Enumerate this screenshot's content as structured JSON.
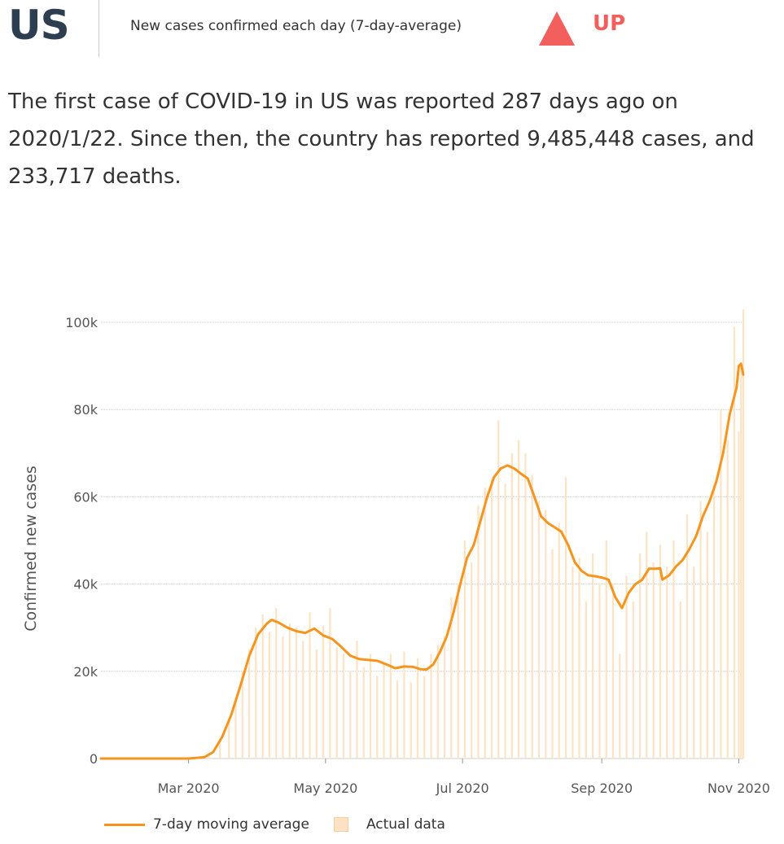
{
  "header": {
    "country": "US",
    "subtitle": "New cases confirmed each day (7-day-average)",
    "trend": "UP",
    "trend_color": "#f25f5c"
  },
  "summary": "The first case of COVID-19 in US was reported 287 days ago on 2020/1/22. Since then, the country has reported 9,485,448 cases, and 233,717 deaths.",
  "legend": {
    "line_label": "7-day moving average",
    "bar_label": "Actual data"
  },
  "colors": {
    "line": "#f7941d",
    "bars": "#fde3c3",
    "grid": "#cccccc",
    "text": "#333333"
  },
  "chart_data": {
    "type": "line",
    "ylabel": "Confirmed new cases",
    "ylim": [
      0,
      100000
    ],
    "y_ticks": [
      {
        "value": 0,
        "label": "0"
      },
      {
        "value": 20000,
        "label": "20k"
      },
      {
        "value": 40000,
        "label": "40k"
      },
      {
        "value": 60000,
        "label": "60k"
      },
      {
        "value": 80000,
        "label": "80k"
      },
      {
        "value": 100000,
        "label": "100k"
      }
    ],
    "xlim": [
      "2020-01-22",
      "2020-11-03"
    ],
    "x_ticks": [
      {
        "date": "2020-03-01",
        "label": "Mar 2020"
      },
      {
        "date": "2020-05-01",
        "label": "May 2020"
      },
      {
        "date": "2020-07-01",
        "label": "Jul 2020"
      },
      {
        "date": "2020-09-01",
        "label": "Sep 2020"
      },
      {
        "date": "2020-11-01",
        "label": "Nov 2020"
      }
    ],
    "grid": true,
    "legend_position": "bottom-left",
    "series": [
      {
        "name": "7-day moving average",
        "kind": "line",
        "points": [
          [
            "2020-01-22",
            0
          ],
          [
            "2020-03-01",
            0
          ],
          [
            "2020-03-08",
            300
          ],
          [
            "2020-03-12",
            1500
          ],
          [
            "2020-03-16",
            5000
          ],
          [
            "2020-03-20",
            10000
          ],
          [
            "2020-03-24",
            16500
          ],
          [
            "2020-03-28",
            23500
          ],
          [
            "2020-04-01",
            28500
          ],
          [
            "2020-04-05",
            31000
          ],
          [
            "2020-04-07",
            31800
          ],
          [
            "2020-04-10",
            31200
          ],
          [
            "2020-04-14",
            30000
          ],
          [
            "2020-04-18",
            29200
          ],
          [
            "2020-04-22",
            28800
          ],
          [
            "2020-04-26",
            29800
          ],
          [
            "2020-04-30",
            28200
          ],
          [
            "2020-05-04",
            27400
          ],
          [
            "2020-05-08",
            25600
          ],
          [
            "2020-05-12",
            23600
          ],
          [
            "2020-05-16",
            22800
          ],
          [
            "2020-05-20",
            22600
          ],
          [
            "2020-05-24",
            22400
          ],
          [
            "2020-05-28",
            21600
          ],
          [
            "2020-06-01",
            20700
          ],
          [
            "2020-06-05",
            21100
          ],
          [
            "2020-06-09",
            21000
          ],
          [
            "2020-06-12",
            20500
          ],
          [
            "2020-06-15",
            20400
          ],
          [
            "2020-06-18",
            21600
          ],
          [
            "2020-06-21",
            24500
          ],
          [
            "2020-06-24",
            28000
          ],
          [
            "2020-06-27",
            33500
          ],
          [
            "2020-06-30",
            40000
          ],
          [
            "2020-07-03",
            46000
          ],
          [
            "2020-07-06",
            49000
          ],
          [
            "2020-07-09",
            54500
          ],
          [
            "2020-07-12",
            60000
          ],
          [
            "2020-07-15",
            64500
          ],
          [
            "2020-07-18",
            66500
          ],
          [
            "2020-07-21",
            67200
          ],
          [
            "2020-07-24",
            66500
          ],
          [
            "2020-07-27",
            65300
          ],
          [
            "2020-07-30",
            64200
          ],
          [
            "2020-08-02",
            60000
          ],
          [
            "2020-08-05",
            55500
          ],
          [
            "2020-08-08",
            54000
          ],
          [
            "2020-08-11",
            53000
          ],
          [
            "2020-08-14",
            52000
          ],
          [
            "2020-08-17",
            49000
          ],
          [
            "2020-08-20",
            45000
          ],
          [
            "2020-08-23",
            43000
          ],
          [
            "2020-08-26",
            42000
          ],
          [
            "2020-08-29",
            41800
          ],
          [
            "2020-09-01",
            41500
          ],
          [
            "2020-09-04",
            41000
          ],
          [
            "2020-09-07",
            37000
          ],
          [
            "2020-09-10",
            34500
          ],
          [
            "2020-09-13",
            38000
          ],
          [
            "2020-09-16",
            40000
          ],
          [
            "2020-09-19",
            41000
          ],
          [
            "2020-09-22",
            43500
          ],
          [
            "2020-09-25",
            43500
          ],
          [
            "2020-09-27",
            43600
          ],
          [
            "2020-09-28",
            41000
          ],
          [
            "2020-10-01",
            42000
          ],
          [
            "2020-10-04",
            44000
          ],
          [
            "2020-10-07",
            45500
          ],
          [
            "2020-10-10",
            48000
          ],
          [
            "2020-10-13",
            51000
          ],
          [
            "2020-10-16",
            55500
          ],
          [
            "2020-10-19",
            59000
          ],
          [
            "2020-10-22",
            63500
          ],
          [
            "2020-10-25",
            70000
          ],
          [
            "2020-10-28",
            79000
          ],
          [
            "2020-10-31",
            85000
          ],
          [
            "2020-11-01",
            90000
          ],
          [
            "2020-11-02",
            90500
          ],
          [
            "2020-11-03",
            88000
          ]
        ]
      },
      {
        "name": "Actual data",
        "kind": "bar",
        "points": [
          [
            "2020-03-10",
            1000
          ],
          [
            "2020-03-15",
            3500
          ],
          [
            "2020-03-19",
            9000
          ],
          [
            "2020-03-22",
            14000
          ],
          [
            "2020-03-25",
            20000
          ],
          [
            "2020-03-28",
            25000
          ],
          [
            "2020-03-31",
            30000
          ],
          [
            "2020-04-03",
            33000
          ],
          [
            "2020-04-06",
            29000
          ],
          [
            "2020-04-09",
            34500
          ],
          [
            "2020-04-12",
            28000
          ],
          [
            "2020-04-15",
            31000
          ],
          [
            "2020-04-18",
            30000
          ],
          [
            "2020-04-21",
            27000
          ],
          [
            "2020-04-24",
            33500
          ],
          [
            "2020-04-27",
            25000
          ],
          [
            "2020-04-30",
            30500
          ],
          [
            "2020-05-03",
            34500
          ],
          [
            "2020-05-06",
            25500
          ],
          [
            "2020-05-09",
            24000
          ],
          [
            "2020-05-12",
            20000
          ],
          [
            "2020-05-15",
            27000
          ],
          [
            "2020-05-18",
            21000
          ],
          [
            "2020-05-21",
            24000
          ],
          [
            "2020-05-24",
            19000
          ],
          [
            "2020-05-27",
            22000
          ],
          [
            "2020-05-30",
            24000
          ],
          [
            "2020-06-02",
            18000
          ],
          [
            "2020-06-05",
            24500
          ],
          [
            "2020-06-08",
            17500
          ],
          [
            "2020-06-11",
            23000
          ],
          [
            "2020-06-14",
            19000
          ],
          [
            "2020-06-17",
            24000
          ],
          [
            "2020-06-20",
            26000
          ],
          [
            "2020-06-23",
            28000
          ],
          [
            "2020-06-26",
            37000
          ],
          [
            "2020-06-29",
            40000
          ],
          [
            "2020-07-02",
            50000
          ],
          [
            "2020-07-05",
            45000
          ],
          [
            "2020-07-08",
            58000
          ],
          [
            "2020-07-11",
            62000
          ],
          [
            "2020-07-14",
            64000
          ],
          [
            "2020-07-17",
            77500
          ],
          [
            "2020-07-20",
            63000
          ],
          [
            "2020-07-23",
            70000
          ],
          [
            "2020-07-26",
            73000
          ],
          [
            "2020-07-29",
            70000
          ],
          [
            "2020-08-01",
            65000
          ],
          [
            "2020-08-04",
            59000
          ],
          [
            "2020-08-07",
            57000
          ],
          [
            "2020-08-10",
            48000
          ],
          [
            "2020-08-13",
            54000
          ],
          [
            "2020-08-16",
            64500
          ],
          [
            "2020-08-19",
            44000
          ],
          [
            "2020-08-22",
            46000
          ],
          [
            "2020-08-25",
            36000
          ],
          [
            "2020-08-28",
            47000
          ],
          [
            "2020-08-31",
            40000
          ],
          [
            "2020-09-03",
            50000
          ],
          [
            "2020-09-06",
            40000
          ],
          [
            "2020-09-09",
            24000
          ],
          [
            "2020-09-12",
            42000
          ],
          [
            "2020-09-15",
            36000
          ],
          [
            "2020-09-18",
            47000
          ],
          [
            "2020-09-21",
            52000
          ],
          [
            "2020-09-24",
            45000
          ],
          [
            "2020-09-27",
            49000
          ],
          [
            "2020-09-30",
            44000
          ],
          [
            "2020-10-03",
            50000
          ],
          [
            "2020-10-06",
            36000
          ],
          [
            "2020-10-09",
            56000
          ],
          [
            "2020-10-12",
            44000
          ],
          [
            "2020-10-15",
            59000
          ],
          [
            "2020-10-18",
            52000
          ],
          [
            "2020-10-21",
            63000
          ],
          [
            "2020-10-24",
            80000
          ],
          [
            "2020-10-27",
            73000
          ],
          [
            "2020-10-30",
            99000
          ],
          [
            "2020-11-01",
            75000
          ],
          [
            "2020-11-02",
            90000
          ],
          [
            "2020-11-03",
            103000
          ]
        ]
      }
    ]
  }
}
